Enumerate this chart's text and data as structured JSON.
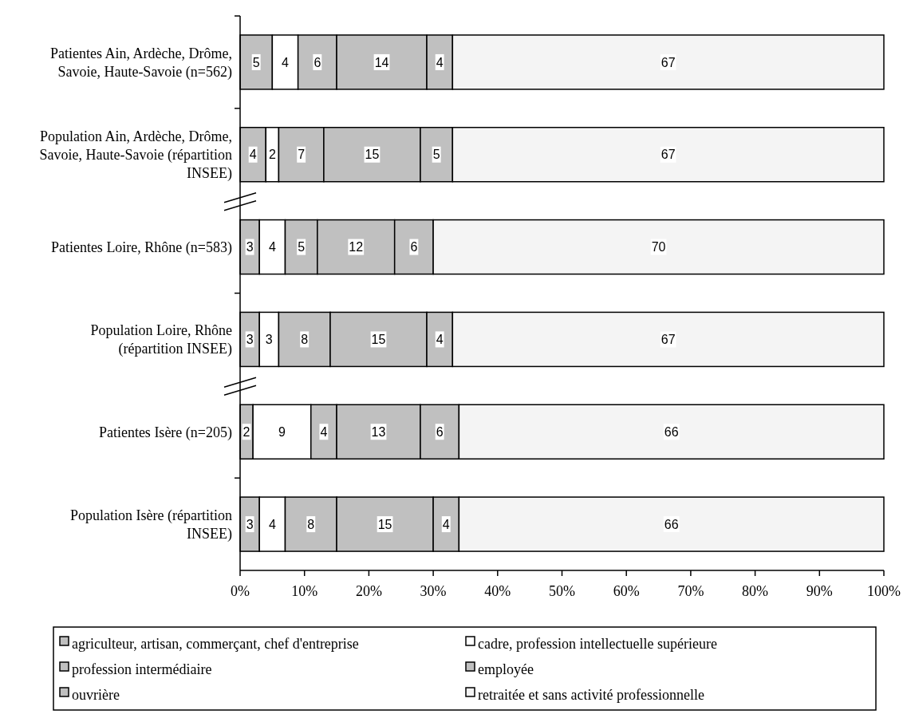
{
  "chart_data": {
    "type": "bar",
    "orientation": "horizontal",
    "stacked": true,
    "data_labels": true,
    "legend": "bottom",
    "categories": [
      "Patientes Ain, Ardèche, Drôme, Savoie, Haute-Savoie (n=562)",
      "Population Ain, Ardèche, Drôme, Savoie, Haute-Savoie (répartition INSEE)",
      "Patientes Loire, Rhône (n=583)",
      "Population Loire, Rhône (répartition INSEE)",
      "Patientes Isère (n=205)",
      "Population Isère (répartition INSEE)"
    ],
    "series": [
      {
        "name": "agriculteur, artisan, commerçant, chef d'entreprise",
        "color": "#c0c0c0",
        "values": [
          5,
          4,
          3,
          3,
          2,
          3
        ]
      },
      {
        "name": "cadre, profession intellectuelle supérieure",
        "color": "#ffffff",
        "values": [
          4,
          2,
          4,
          3,
          9,
          4
        ]
      },
      {
        "name": "profession intermédiaire",
        "color": "#c0c0c0",
        "values": [
          6,
          7,
          5,
          8,
          4,
          8
        ]
      },
      {
        "name": "employée",
        "color": "#c0c0c0",
        "values": [
          14,
          15,
          12,
          15,
          13,
          15
        ]
      },
      {
        "name": "ouvrière",
        "color": "#c0c0c0",
        "values": [
          4,
          5,
          6,
          4,
          6,
          4
        ]
      },
      {
        "name": "retraitée et sans activité professionnelle",
        "color": "#f4f4f4",
        "values": [
          67,
          67,
          70,
          67,
          66,
          66
        ]
      }
    ],
    "xlim": [
      0,
      100
    ],
    "xticks": [
      {
        "value": 0,
        "label": "0%"
      },
      {
        "value": 10,
        "label": "10%"
      },
      {
        "value": 20,
        "label": "20%"
      },
      {
        "value": 30,
        "label": "30%"
      },
      {
        "value": 40,
        "label": "40%"
      },
      {
        "value": 50,
        "label": "50%"
      },
      {
        "value": 60,
        "label": "60%"
      },
      {
        "value": 70,
        "label": "70%"
      },
      {
        "value": 80,
        "label": "80%"
      },
      {
        "value": 90,
        "label": "90%"
      },
      {
        "value": 100,
        "label": "100%"
      }
    ]
  }
}
